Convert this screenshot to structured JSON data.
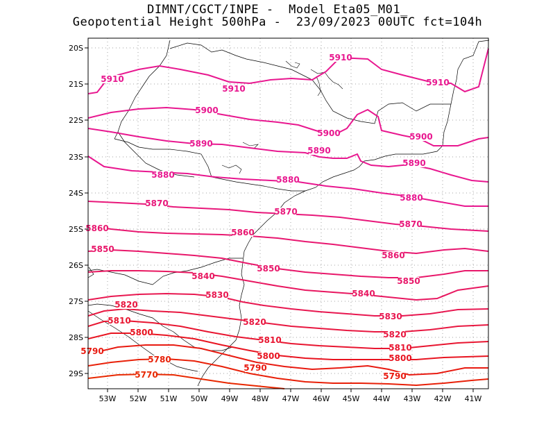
{
  "title": {
    "line1": "DIMNT/CGCT/INPE -  Model Eta05_M01_",
    "line2": "Geopotential Height 500hPa -  23/09/2023 00UTC fct=104h"
  },
  "colors": {
    "frame": "#000000",
    "grid": "#a0a0a0",
    "coast": "#000000"
  },
  "axes": {
    "lon_labels": [
      "53W",
      "52W",
      "51W",
      "50W",
      "49W",
      "48W",
      "47W",
      "46W",
      "45W",
      "44W",
      "43W",
      "42W",
      "41W"
    ],
    "lat_labels": [
      "20S",
      "21S",
      "22S",
      "23S",
      "24S",
      "25S",
      "26S",
      "27S",
      "28S",
      "29S"
    ]
  },
  "contours": [
    {
      "value": "5910",
      "color": "#e8178f"
    },
    {
      "value": "5900",
      "color": "#e8178f"
    },
    {
      "value": "5890",
      "color": "#e8178f"
    },
    {
      "value": "5880",
      "color": "#e8178f"
    },
    {
      "value": "5870",
      "color": "#e8177a"
    },
    {
      "value": "5860",
      "color": "#e81770"
    },
    {
      "value": "5850",
      "color": "#e8176a"
    },
    {
      "value": "5840",
      "color": "#e81760"
    },
    {
      "value": "5830",
      "color": "#e81750"
    },
    {
      "value": "5820",
      "color": "#e81740"
    },
    {
      "value": "5810",
      "color": "#e81530"
    },
    {
      "value": "5800",
      "color": "#e81420"
    },
    {
      "value": "5790",
      "color": "#e81a10"
    },
    {
      "value": "5780",
      "color": "#e82008"
    },
    {
      "value": "5770",
      "color": "#e82800"
    }
  ]
}
